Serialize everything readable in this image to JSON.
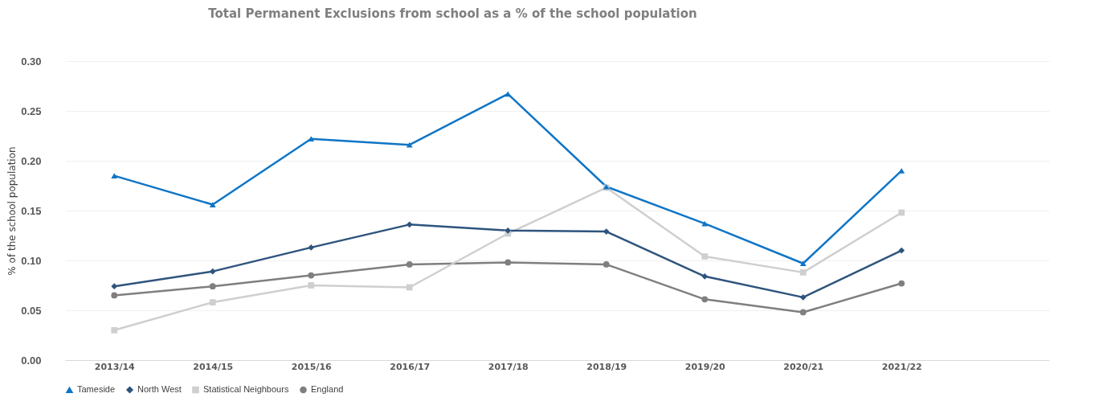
{
  "chart_data": {
    "type": "line",
    "title": "Total Permanent Exclusions from school as a % of the school population",
    "ylabel": "% of the school population",
    "categories": [
      "2013/14",
      "2014/15",
      "2015/16",
      "2016/17",
      "2017/18",
      "2018/19",
      "2019/20",
      "2020/21",
      "2021/22",
      null
    ],
    "series": [
      {
        "name": "Tameside",
        "color": "#0f75c6",
        "marker": "triangle",
        "values": [
          0.185,
          0.156,
          0.222,
          0.216,
          0.267,
          0.174,
          0.137,
          0.097,
          0.19,
          null
        ]
      },
      {
        "name": "North West",
        "color": "#2e547d",
        "marker": "diamond",
        "values": [
          0.074,
          0.089,
          0.113,
          0.136,
          0.13,
          0.129,
          0.084,
          0.063,
          0.11,
          null
        ]
      },
      {
        "name": "Statistical Neighbours",
        "color": "#cfcfcf",
        "marker": "square",
        "values": [
          0.03,
          0.058,
          0.075,
          0.073,
          0.127,
          0.173,
          0.104,
          0.088,
          0.148,
          null
        ]
      },
      {
        "name": "England",
        "color": "#7f7f7f",
        "marker": "circle",
        "values": [
          0.065,
          0.074,
          0.085,
          0.096,
          0.098,
          0.096,
          0.061,
          0.048,
          0.077,
          null
        ]
      }
    ],
    "ylim": [
      0,
      0.3
    ],
    "yticks": [
      {
        "value": 0,
        "label": "0.00"
      },
      {
        "value": 0.05,
        "label": "0.05"
      },
      {
        "value": 0.1,
        "label": "0.10"
      },
      {
        "value": 0.15,
        "label": "0.15"
      },
      {
        "value": 0.2,
        "label": "0.20"
      },
      {
        "value": 0.25,
        "label": "0.25"
      },
      {
        "value": 0.3,
        "label": "0.30"
      }
    ],
    "grid": "y",
    "legend": "bottom",
    "line_style": "solid"
  }
}
